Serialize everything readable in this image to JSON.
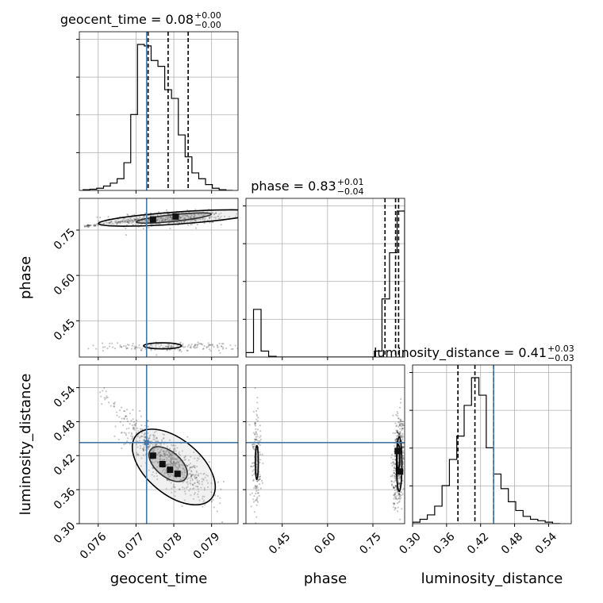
{
  "chart_data": {
    "type": "corner",
    "parameters": [
      {
        "name": "geocent_time",
        "label": "geocent_time",
        "range": [
          0.0755,
          0.0797
        ],
        "ticks": [
          {
            "v": 0.076,
            "label": "0.076"
          },
          {
            "v": 0.077,
            "label": "0.077"
          },
          {
            "v": 0.078,
            "label": "0.078"
          },
          {
            "v": 0.079,
            "label": "0.079"
          }
        ],
        "title_main": "geocent_time = 0.08",
        "title_sup": "+0.00",
        "title_sub": "−0.00",
        "quantiles": [
          0.07732,
          0.07785,
          0.07838
        ],
        "truth": 0.07728
      },
      {
        "name": "phase",
        "label": "phase",
        "range": [
          0.33,
          0.855
        ],
        "ticks": [
          {
            "v": 0.45,
            "label": "0.45"
          },
          {
            "v": 0.6,
            "label": "0.60"
          },
          {
            "v": 0.75,
            "label": "0.75"
          }
        ],
        "title_main": "phase = 0.83",
        "title_sup": "+0.01",
        "title_sub": "−0.04",
        "quantiles": [
          0.79,
          0.825,
          0.835
        ],
        "truth": null
      },
      {
        "name": "luminosity_distance",
        "label": "luminosity_distance",
        "range": [
          0.3,
          0.58
        ],
        "ticks": [
          {
            "v": 0.3,
            "label": "0.30"
          },
          {
            "v": 0.36,
            "label": "0.36"
          },
          {
            "v": 0.42,
            "label": "0.42"
          },
          {
            "v": 0.48,
            "label": "0.48"
          },
          {
            "v": 0.54,
            "label": "0.54"
          }
        ],
        "title_main": "luminosity_distance = 0.41",
        "title_sup": "+0.03",
        "title_sub": "−0.03",
        "quantiles": [
          0.38,
          0.41,
          0.443
        ],
        "truth": 0.443
      }
    ],
    "histograms": {
      "geocent_time": {
        "edges": [
          0.0756,
          0.07578,
          0.07596,
          0.07614,
          0.07632,
          0.0765,
          0.07668,
          0.07686,
          0.07704,
          0.07722,
          0.0774,
          0.07758,
          0.07776,
          0.07794,
          0.07812,
          0.0783,
          0.07848,
          0.07866,
          0.07884,
          0.07902,
          0.0792,
          0.07938,
          0.07956
        ],
        "counts": [
          0.5,
          0.8,
          1.5,
          3,
          5,
          8,
          19,
          52,
          100,
          99,
          89,
          85,
          69,
          63,
          38,
          23,
          12,
          8,
          4,
          1.5,
          0.5,
          0
        ]
      },
      "phase": {
        "edges": [
          0.33,
          0.355,
          0.38,
          0.405,
          0.43,
          0.455,
          0.48,
          0.505,
          0.53,
          0.555,
          0.58,
          0.605,
          0.63,
          0.655,
          0.68,
          0.705,
          0.73,
          0.755,
          0.78,
          0.805,
          0.83,
          0.855
        ],
        "counts": [
          3,
          32,
          4,
          0.5,
          0,
          0,
          0,
          0,
          0,
          0,
          0,
          0,
          0,
          0,
          0,
          0,
          0,
          4,
          39,
          70,
          98
        ]
      },
      "luminosity_distance": {
        "edges": [
          0.3,
          0.313,
          0.326,
          0.339,
          0.352,
          0.365,
          0.378,
          0.391,
          0.404,
          0.417,
          0.43,
          0.443,
          0.456,
          0.469,
          0.482,
          0.495,
          0.508,
          0.521,
          0.534,
          0.547,
          0.56
        ],
        "counts": [
          1,
          3,
          6,
          12,
          26,
          44,
          60,
          81,
          100,
          88,
          52,
          34,
          24,
          15,
          9,
          5,
          3,
          2,
          1,
          0
        ]
      }
    },
    "panels_2d": [
      {
        "x": "geocent_time",
        "y": "phase",
        "clusters": [
          {
            "cx": 0.0779,
            "cy": 0.787,
            "sx": 0.00075,
            "sy": 0.012,
            "n": 520,
            "rho": 0.25
          },
          {
            "cx": 0.078,
            "cy": 0.364,
            "sx": 0.0009,
            "sy": 0.007,
            "n": 170,
            "rho": 0.0
          }
        ],
        "tails": [
          {
            "from": [
              0.0756,
              0.762
            ],
            "to": [
              0.0772,
              0.785
            ],
            "n": 90,
            "s": 0.004
          }
        ],
        "contours": [
          {
            "cx": 0.078,
            "cy": 0.79,
            "rx": 0.001,
            "ry": 0.011,
            "rot": 6
          },
          {
            "cx": 0.0781,
            "cy": 0.79,
            "rx": 0.0021,
            "ry": 0.02,
            "rot": 4
          },
          {
            "cx": 0.0777,
            "cy": 0.367,
            "rx": 0.0005,
            "ry": 0.01,
            "rot": 0
          }
        ],
        "dense": [
          {
            "x": 0.07745,
            "y": 0.785
          },
          {
            "x": 0.07805,
            "y": 0.795
          }
        ],
        "truth_x": 0.07728,
        "truth_y": null
      },
      {
        "x": "geocent_time",
        "y": "luminosity_distance",
        "clusters": [
          {
            "cx": 0.0779,
            "cy": 0.41,
            "sx": 0.00055,
            "sy": 0.032,
            "n": 650,
            "rho": -0.78
          }
        ],
        "tails": [
          {
            "from": [
              0.076,
              0.535
            ],
            "to": [
              0.0774,
              0.445
            ],
            "n": 60,
            "s": 0.015
          }
        ],
        "contours": [
          {
            "cx": 0.07785,
            "cy": 0.405,
            "rx": 0.0006,
            "ry": 0.022,
            "rot": -40
          },
          {
            "cx": 0.078,
            "cy": 0.4,
            "rx": 0.0013,
            "ry": 0.048,
            "rot": -40
          }
        ],
        "dense": [
          {
            "x": 0.07745,
            "y": 0.42
          },
          {
            "x": 0.0777,
            "y": 0.405
          },
          {
            "x": 0.0779,
            "y": 0.395
          },
          {
            "x": 0.0781,
            "y": 0.388
          }
        ],
        "truth_x": 0.07728,
        "truth_y": 0.443
      },
      {
        "x": "phase",
        "y": "luminosity_distance",
        "clusters": [
          {
            "cx": 0.365,
            "cy": 0.41,
            "sx": 0.008,
            "sy": 0.045,
            "n": 170,
            "rho": 0.0
          },
          {
            "cx": 0.835,
            "cy": 0.41,
            "sx": 0.009,
            "sy": 0.038,
            "n": 520,
            "rho": 0.3
          }
        ],
        "tails": [],
        "contours": [
          {
            "cx": 0.366,
            "cy": 0.408,
            "rx": 0.005,
            "ry": 0.03,
            "rot": 0
          },
          {
            "cx": 0.837,
            "cy": 0.405,
            "rx": 0.009,
            "ry": 0.048,
            "rot": 0
          },
          {
            "cx": 0.834,
            "cy": 0.418,
            "rx": 0.005,
            "ry": 0.022,
            "rot": 0
          }
        ],
        "dense": [
          {
            "x": 0.832,
            "y": 0.428
          },
          {
            "x": 0.84,
            "y": 0.392
          }
        ],
        "truth_x": null,
        "truth_y": 0.443
      }
    ],
    "grid": true,
    "colors": {
      "truth": "#4477aa",
      "hist": "#000000",
      "grid": "#b0b0b0",
      "points": "#000000"
    }
  }
}
